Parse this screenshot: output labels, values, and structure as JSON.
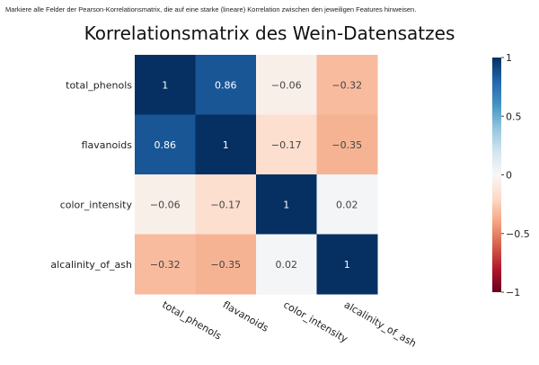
{
  "instruction": "Markiere alle Felder der Pearson-Korrelationsmatrix, die auf eine starke (lineare) Korrelation zwischen den jeweiligen Features hinweisen.",
  "chart_data": {
    "type": "heatmap",
    "title": "Korrelationsmatrix des Wein-Datensatzes",
    "rows": [
      "total_phenols",
      "flavanoids",
      "color_intensity",
      "alcalinity_of_ash"
    ],
    "cols": [
      "total_phenols",
      "flavanoids",
      "color_intensity",
      "alcalinity_of_ash"
    ],
    "values": [
      [
        1,
        0.86,
        -0.06,
        -0.32
      ],
      [
        0.86,
        1,
        -0.17,
        -0.35
      ],
      [
        -0.06,
        -0.17,
        1,
        0.02
      ],
      [
        -0.32,
        -0.35,
        0.02,
        1
      ]
    ],
    "cell_labels": [
      [
        "1",
        "0.86",
        "−0.06",
        "−0.32"
      ],
      [
        "0.86",
        "1",
        "−0.17",
        "−0.35"
      ],
      [
        "−0.06",
        "−0.17",
        "1",
        "0.02"
      ],
      [
        "−0.32",
        "−0.35",
        "0.02",
        "1"
      ]
    ],
    "zlim": [
      -1,
      1
    ],
    "colorscale": "RdBu",
    "colorbar": {
      "ticks": [
        1,
        0.5,
        0,
        -0.5,
        -1
      ],
      "tick_labels": [
        "1",
        "0.5",
        "0",
        "−0.5",
        "−1"
      ]
    },
    "colors": {
      "low": "#67001f",
      "mid": "#f7f7f7",
      "high": "#053061"
    },
    "grid": false,
    "legend": "right"
  }
}
